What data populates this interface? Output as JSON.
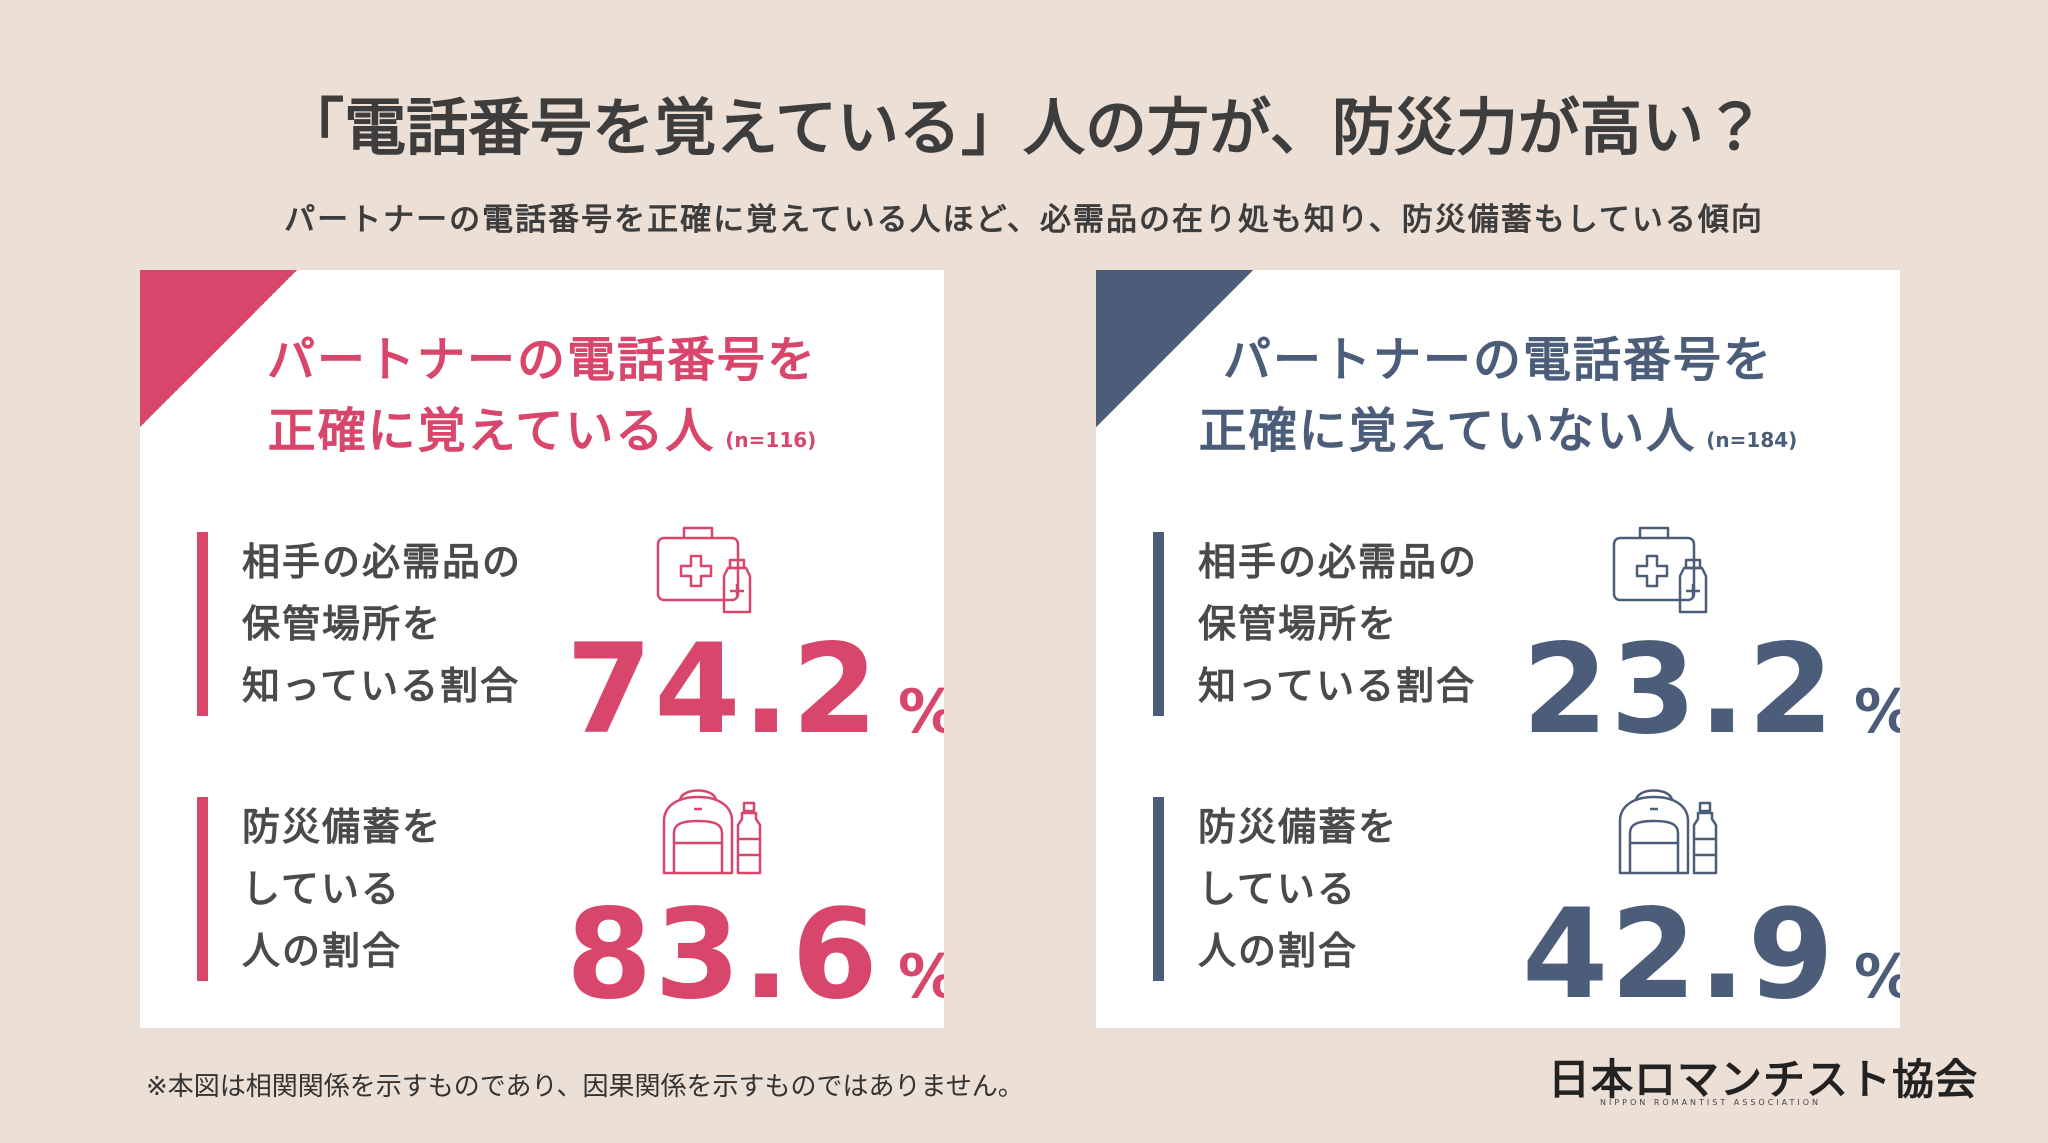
{
  "header": {
    "title": "「電話番号を覚えている」人の方が、防災力が高い？",
    "subtitle": "パートナーの電話番号を正確に覚えている人ほど、必需品の在り処も知り、防災備蓄もしている傾向"
  },
  "panels": [
    {
      "title_lines": [
        "パートナーの電話番号を",
        "正確に覚えている人"
      ],
      "n": "(n=116)",
      "color": "#d8466c",
      "stats": [
        {
          "label_lines": [
            "相手の必需品の",
            "保管場所を",
            "知っている割合"
          ],
          "value": 74.2,
          "unit": "%"
        },
        {
          "label_lines": [
            "防災備蓄を",
            "している",
            "人の割合"
          ],
          "value": 83.6,
          "unit": "%"
        }
      ]
    },
    {
      "title_lines": [
        "パートナーの電話番号を",
        "正確に覚えていない人"
      ],
      "n": "(n=184)",
      "color": "#4b5d79",
      "stats": [
        {
          "label_lines": [
            "相手の必需品の",
            "保管場所を",
            "知っている割合"
          ],
          "value": 23.2,
          "unit": "%"
        },
        {
          "label_lines": [
            "防災備蓄を",
            "している",
            "人の割合"
          ],
          "value": 42.9,
          "unit": "%"
        }
      ]
    }
  ],
  "footnote": "※本図は相関関係を示すものであり、因果関係を示すものではありません。",
  "logo": {
    "name": "日本ロマンチスト協会",
    "subtitle": "NIPPON ROMANTIST ASSOCIATION"
  }
}
